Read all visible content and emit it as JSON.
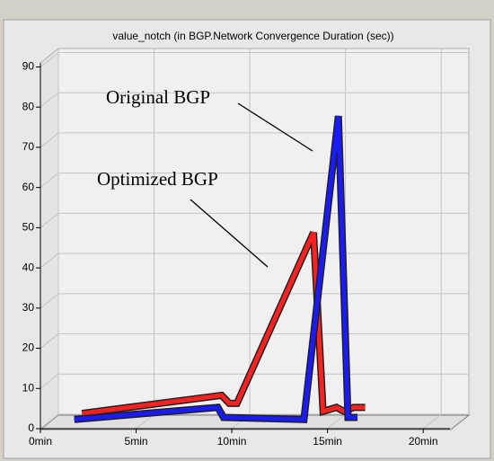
{
  "chart_data": {
    "type": "line",
    "title": "value_notch (in BGP.Network Convergence Duration (sec))",
    "xlim": [
      0,
      21.4
    ],
    "xticks": [
      {
        "value": 0,
        "label": "0min"
      },
      {
        "value": 5,
        "label": "5min"
      },
      {
        "value": 10,
        "label": "10min"
      },
      {
        "value": 15,
        "label": "15min"
      },
      {
        "value": 20,
        "label": "20min"
      }
    ],
    "ylim": [
      0,
      91
    ],
    "yticks": [
      0,
      10,
      20,
      30,
      40,
      50,
      60,
      70,
      80,
      90
    ],
    "grid": true,
    "series": [
      {
        "name": "Original BGP",
        "color": "#1a1aff",
        "x": [
          1.3,
          8.8,
          9.1,
          13.3,
          15.1,
          15.6,
          16.1
        ],
        "values": [
          0.5,
          3.5,
          1,
          0.5,
          76,
          1,
          1
        ]
      },
      {
        "name": "Optimized BGP",
        "color": "#ff2020",
        "x": [
          1.7,
          9.0,
          9.4,
          9.8,
          13.8,
          14.3,
          15.0,
          15.4,
          15.9,
          16.5
        ],
        "values": [
          2,
          6.5,
          4.5,
          4.5,
          47,
          2.5,
          3.5,
          2.5,
          3.5,
          3.5
        ]
      }
    ]
  }
}
